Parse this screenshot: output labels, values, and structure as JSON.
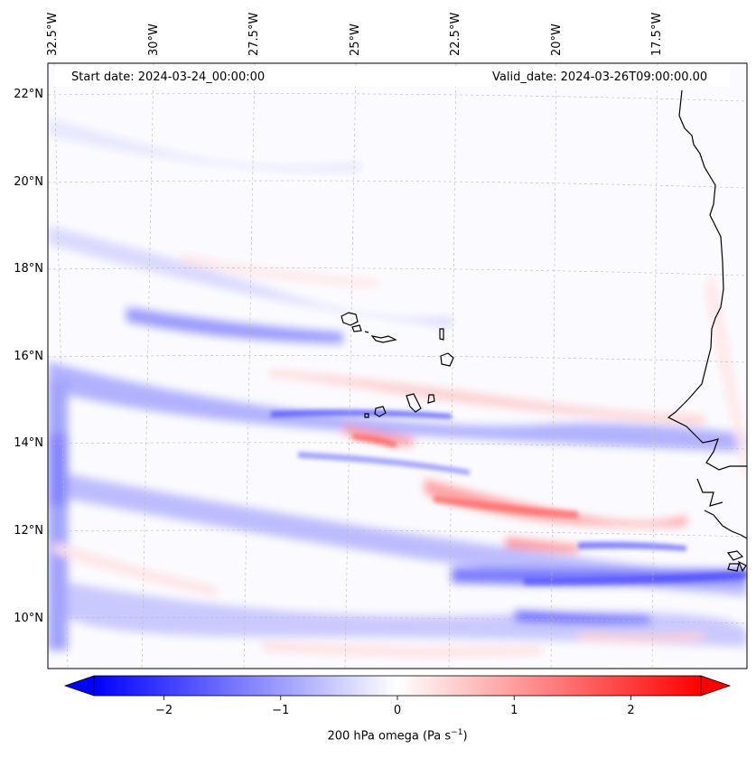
{
  "header": {
    "start_date": "Start date: 2024-03-24_00:00:00",
    "valid_date": "Valid_date: 2024-03-26T09:00:00.00"
  },
  "map": {
    "lon_ticks": [
      {
        "value": -32.5,
        "label": "32.5°W"
      },
      {
        "value": -30.0,
        "label": "30°W"
      },
      {
        "value": -27.5,
        "label": "27.5°W"
      },
      {
        "value": -25.0,
        "label": "25°W"
      },
      {
        "value": -22.5,
        "label": "22.5°W"
      },
      {
        "value": -20.0,
        "label": "20°W"
      },
      {
        "value": -17.5,
        "label": "17.5°W"
      }
    ],
    "lat_ticks": [
      {
        "value": 22,
        "label": "22°N"
      },
      {
        "value": 20,
        "label": "20°N"
      },
      {
        "value": 18,
        "label": "18°N"
      },
      {
        "value": 16,
        "label": "16°N"
      },
      {
        "value": 14,
        "label": "14°N"
      },
      {
        "value": 12,
        "label": "12°N"
      },
      {
        "value": 10,
        "label": "10°N"
      }
    ],
    "field_colors": {
      "negative": "#0000ff",
      "neutral": "#ffffff",
      "positive": "#ff0000"
    }
  },
  "colorbar": {
    "label_prefix": "200 hPa omega (Pa s",
    "label_exp": "−1",
    "label_suffix": ")",
    "range": [
      -2.6,
      2.6
    ],
    "ticks": [
      {
        "value": -2,
        "label": "−2"
      },
      {
        "value": -1,
        "label": "−1"
      },
      {
        "value": 0,
        "label": "0"
      },
      {
        "value": 1,
        "label": "1"
      },
      {
        "value": 2,
        "label": "2"
      }
    ]
  }
}
